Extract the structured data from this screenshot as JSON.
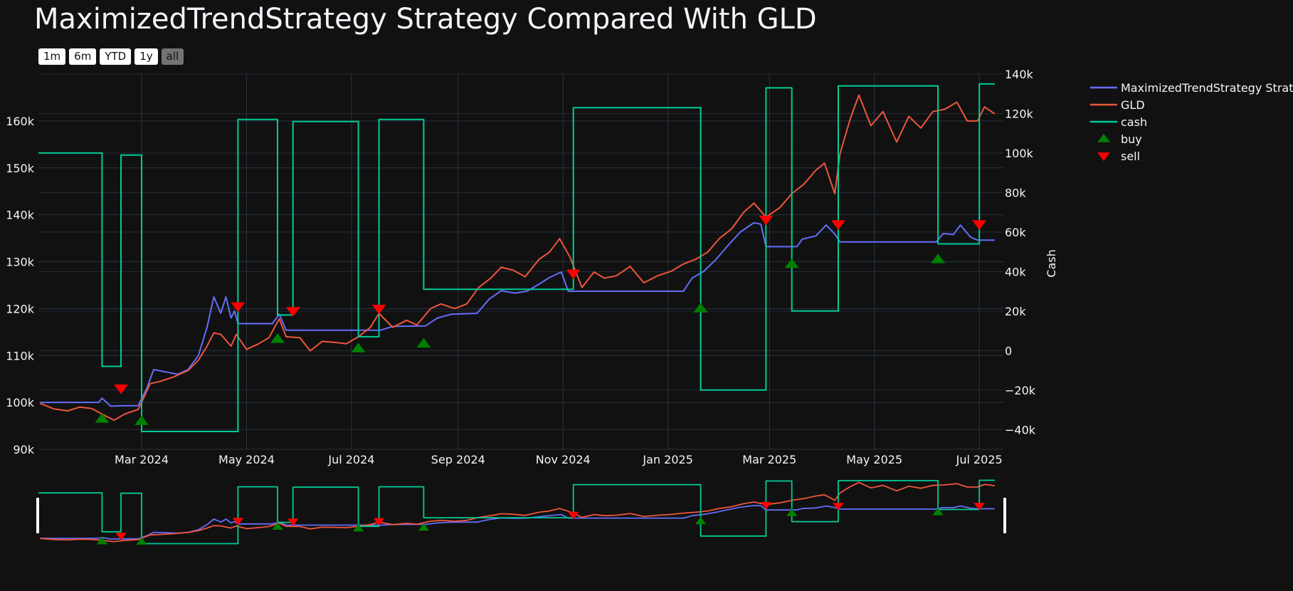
{
  "title": "MaximizedTrendStrategy Strategy Compared With GLD",
  "range_buttons": [
    {
      "label": "1m",
      "active": false
    },
    {
      "label": "6m",
      "active": false
    },
    {
      "label": "YTD",
      "active": false
    },
    {
      "label": "1y",
      "active": false
    },
    {
      "label": "all",
      "active": true
    }
  ],
  "colors": {
    "strategy": "#636efa",
    "gld": "#ef553b",
    "cash": "#00cc96",
    "buy": "#008000",
    "sell": "#ff0000",
    "grid": "#283442"
  },
  "chart_data": {
    "type": "line",
    "title": "MaximizedTrendStrategy Strategy Compared With GLD",
    "x_range": [
      "2024-01-01",
      "2025-07-15"
    ],
    "y_left": {
      "range": [
        90000,
        170000
      ],
      "ticks": [
        {
          "v": 90000,
          "label": "90k"
        },
        {
          "v": 100000,
          "label": "100k"
        },
        {
          "v": 110000,
          "label": "110k"
        },
        {
          "v": 120000,
          "label": "120k"
        },
        {
          "v": 130000,
          "label": "130k"
        },
        {
          "v": 140000,
          "label": "140k"
        },
        {
          "v": 150000,
          "label": "150k"
        },
        {
          "v": 160000,
          "label": "160k"
        }
      ]
    },
    "y_right": {
      "label": "Cash",
      "range": [
        -50000,
        140000
      ],
      "ticks": [
        {
          "v": -40000,
          "label": "−40k"
        },
        {
          "v": -20000,
          "label": "−20k"
        },
        {
          "v": 0,
          "label": "0"
        },
        {
          "v": 20000,
          "label": "20k"
        },
        {
          "v": 40000,
          "label": "40k"
        },
        {
          "v": 60000,
          "label": "60k"
        },
        {
          "v": 80000,
          "label": "80k"
        },
        {
          "v": 100000,
          "label": "100k"
        },
        {
          "v": 120000,
          "label": "120k"
        },
        {
          "v": 140000,
          "label": "140k"
        }
      ]
    },
    "x_ticks": [
      {
        "date": "2024-03-01",
        "label": "Mar 2024"
      },
      {
        "date": "2024-05-01",
        "label": "May 2024"
      },
      {
        "date": "2024-07-01",
        "label": "Jul 2024"
      },
      {
        "date": "2024-09-01",
        "label": "Sep 2024"
      },
      {
        "date": "2024-11-01",
        "label": "Nov 2024"
      },
      {
        "date": "2025-01-01",
        "label": "Jan 2025"
      },
      {
        "date": "2025-03-01",
        "label": "Mar 2025"
      },
      {
        "date": "2025-05-01",
        "label": "May 2025"
      },
      {
        "date": "2025-07-01",
        "label": "Jul 2025"
      }
    ],
    "legend_placement": "right",
    "grid": true,
    "series": [
      {
        "name": "MaximizedTrendStrategy Strategy",
        "key": "strategy",
        "axis": "left",
        "points": [
          [
            "2024-01-02",
            100000
          ],
          [
            "2024-02-05",
            100000
          ],
          [
            "2024-02-07",
            100900
          ],
          [
            "2024-02-12",
            99200
          ],
          [
            "2024-02-20",
            99300
          ],
          [
            "2024-02-28",
            99300
          ],
          [
            "2024-03-04",
            103000
          ],
          [
            "2024-03-08",
            107000
          ],
          [
            "2024-03-15",
            106500
          ],
          [
            "2024-03-22",
            106000
          ],
          [
            "2024-03-28",
            107000
          ],
          [
            "2024-04-03",
            110000
          ],
          [
            "2024-04-08",
            116000
          ],
          [
            "2024-04-12",
            122500
          ],
          [
            "2024-04-16",
            119000
          ],
          [
            "2024-04-19",
            122500
          ],
          [
            "2024-04-22",
            118000
          ],
          [
            "2024-04-24",
            119500
          ],
          [
            "2024-04-26",
            116800
          ],
          [
            "2024-05-16",
            116800
          ],
          [
            "2024-05-20",
            118800
          ],
          [
            "2024-05-24",
            115400
          ],
          [
            "2024-07-08",
            115400
          ],
          [
            "2024-07-18",
            115400
          ],
          [
            "2024-07-25",
            116200
          ],
          [
            "2024-08-13",
            116300
          ],
          [
            "2024-08-20",
            118000
          ],
          [
            "2024-08-28",
            118800
          ],
          [
            "2024-09-12",
            119000
          ],
          [
            "2024-09-19",
            122000
          ],
          [
            "2024-09-26",
            123800
          ],
          [
            "2024-10-04",
            123300
          ],
          [
            "2024-10-11",
            123700
          ],
          [
            "2024-10-18",
            125200
          ],
          [
            "2024-10-24",
            126600
          ],
          [
            "2024-10-31",
            127800
          ],
          [
            "2024-11-04",
            123700
          ],
          [
            "2025-01-10",
            123700
          ],
          [
            "2025-01-15",
            126500
          ],
          [
            "2025-01-22",
            128000
          ],
          [
            "2025-01-29",
            130500
          ],
          [
            "2025-02-05",
            133500
          ],
          [
            "2025-02-12",
            136300
          ],
          [
            "2025-02-20",
            138300
          ],
          [
            "2025-02-24",
            138000
          ],
          [
            "2025-02-27",
            133200
          ],
          [
            "2025-03-17",
            133200
          ],
          [
            "2025-03-20",
            134800
          ],
          [
            "2025-03-28",
            135500
          ],
          [
            "2025-04-03",
            137800
          ],
          [
            "2025-04-08",
            135900
          ],
          [
            "2025-04-11",
            134200
          ],
          [
            "2025-06-06",
            134200
          ],
          [
            "2025-06-10",
            136000
          ],
          [
            "2025-06-16",
            135800
          ],
          [
            "2025-06-20",
            137800
          ],
          [
            "2025-06-26",
            135200
          ],
          [
            "2025-06-30",
            134600
          ],
          [
            "2025-07-10",
            134600
          ]
        ]
      },
      {
        "name": "GLD",
        "key": "gld",
        "axis": "left",
        "points": [
          [
            "2024-01-02",
            99800
          ],
          [
            "2024-01-10",
            98600
          ],
          [
            "2024-01-18",
            98200
          ],
          [
            "2024-01-25",
            99000
          ],
          [
            "2024-02-01",
            98700
          ],
          [
            "2024-02-08",
            97300
          ],
          [
            "2024-02-14",
            96200
          ],
          [
            "2024-02-20",
            97500
          ],
          [
            "2024-02-28",
            98500
          ],
          [
            "2024-03-01",
            100000
          ],
          [
            "2024-03-06",
            104000
          ],
          [
            "2024-03-12",
            104500
          ],
          [
            "2024-03-20",
            105500
          ],
          [
            "2024-03-28",
            106800
          ],
          [
            "2024-04-03",
            109000
          ],
          [
            "2024-04-08",
            112000
          ],
          [
            "2024-04-12",
            114800
          ],
          [
            "2024-04-16",
            114500
          ],
          [
            "2024-04-22",
            112000
          ],
          [
            "2024-04-25",
            114500
          ],
          [
            "2024-05-01",
            111300
          ],
          [
            "2024-05-08",
            112500
          ],
          [
            "2024-05-14",
            113800
          ],
          [
            "2024-05-20",
            117800
          ],
          [
            "2024-05-24",
            114000
          ],
          [
            "2024-06-01",
            113800
          ],
          [
            "2024-06-07",
            111000
          ],
          [
            "2024-06-14",
            113000
          ],
          [
            "2024-06-21",
            112800
          ],
          [
            "2024-06-28",
            112500
          ],
          [
            "2024-07-05",
            114000
          ],
          [
            "2024-07-12",
            116000
          ],
          [
            "2024-07-17",
            119000
          ],
          [
            "2024-07-25",
            116000
          ],
          [
            "2024-08-02",
            117500
          ],
          [
            "2024-08-08",
            116500
          ],
          [
            "2024-08-16",
            120000
          ],
          [
            "2024-08-22",
            121000
          ],
          [
            "2024-08-30",
            120000
          ],
          [
            "2024-09-06",
            121000
          ],
          [
            "2024-09-13",
            124500
          ],
          [
            "2024-09-20",
            126500
          ],
          [
            "2024-09-26",
            128800
          ],
          [
            "2024-10-03",
            128200
          ],
          [
            "2024-10-10",
            126800
          ],
          [
            "2024-10-18",
            130500
          ],
          [
            "2024-10-24",
            132000
          ],
          [
            "2024-10-30",
            134900
          ],
          [
            "2024-11-05",
            131000
          ],
          [
            "2024-11-12",
            124500
          ],
          [
            "2024-11-19",
            127800
          ],
          [
            "2024-11-25",
            126500
          ],
          [
            "2024-12-02",
            127000
          ],
          [
            "2024-12-10",
            129000
          ],
          [
            "2024-12-18",
            125500
          ],
          [
            "2024-12-26",
            127000
          ],
          [
            "2025-01-03",
            128000
          ],
          [
            "2025-01-10",
            129500
          ],
          [
            "2025-01-17",
            130500
          ],
          [
            "2025-01-24",
            132000
          ],
          [
            "2025-01-31",
            135000
          ],
          [
            "2025-02-07",
            137000
          ],
          [
            "2025-02-14",
            140500
          ],
          [
            "2025-02-20",
            142500
          ],
          [
            "2025-02-27",
            139500
          ],
          [
            "2025-03-07",
            141500
          ],
          [
            "2025-03-14",
            144500
          ],
          [
            "2025-03-21",
            146500
          ],
          [
            "2025-03-28",
            149500
          ],
          [
            "2025-04-02",
            151000
          ],
          [
            "2025-04-08",
            144500
          ],
          [
            "2025-04-11",
            153000
          ],
          [
            "2025-04-17",
            160500
          ],
          [
            "2025-04-22",
            165500
          ],
          [
            "2025-04-29",
            159000
          ],
          [
            "2025-05-06",
            162000
          ],
          [
            "2025-05-14",
            155500
          ],
          [
            "2025-05-21",
            161000
          ],
          [
            "2025-05-28",
            158500
          ],
          [
            "2025-06-04",
            162000
          ],
          [
            "2025-06-11",
            162500
          ],
          [
            "2025-06-18",
            164000
          ],
          [
            "2025-06-24",
            160000
          ],
          [
            "2025-06-30",
            160000
          ],
          [
            "2025-07-04",
            163000
          ],
          [
            "2025-07-10",
            161500
          ]
        ]
      },
      {
        "name": "cash",
        "key": "cash",
        "axis": "right",
        "points": [
          [
            "2024-01-01",
            100000
          ],
          [
            "2024-02-07",
            100000
          ],
          [
            "2024-02-07",
            -8000
          ],
          [
            "2024-02-18",
            -8000
          ],
          [
            "2024-02-18",
            99000
          ],
          [
            "2024-03-01",
            99000
          ],
          [
            "2024-03-01",
            -41000
          ],
          [
            "2024-04-26",
            -41000
          ],
          [
            "2024-04-26",
            117000
          ],
          [
            "2024-05-19",
            117000
          ],
          [
            "2024-05-19",
            18000
          ],
          [
            "2024-05-28",
            18000
          ],
          [
            "2024-05-28",
            116000
          ],
          [
            "2024-07-05",
            116000
          ],
          [
            "2024-07-05",
            7000
          ],
          [
            "2024-07-17",
            7000
          ],
          [
            "2024-07-17",
            117000
          ],
          [
            "2024-08-12",
            117000
          ],
          [
            "2024-08-12",
            31000
          ],
          [
            "2024-11-07",
            31000
          ],
          [
            "2024-11-07",
            123000
          ],
          [
            "2025-01-20",
            123000
          ],
          [
            "2025-01-20",
            -20000
          ],
          [
            "2025-02-27",
            -20000
          ],
          [
            "2025-02-27",
            133000
          ],
          [
            "2025-03-14",
            133000
          ],
          [
            "2025-03-14",
            20000
          ],
          [
            "2025-04-10",
            20000
          ],
          [
            "2025-04-10",
            134000
          ],
          [
            "2025-06-07",
            134000
          ],
          [
            "2025-06-07",
            54000
          ],
          [
            "2025-07-01",
            54000
          ],
          [
            "2025-07-01",
            135000
          ],
          [
            "2025-07-10",
            135000
          ]
        ]
      }
    ],
    "buy_markers": [
      {
        "date": "2024-02-07",
        "value": 96500
      },
      {
        "date": "2024-03-01",
        "value": 96000
      },
      {
        "date": "2024-05-19",
        "value": 113500
      },
      {
        "date": "2024-07-05",
        "value": 111500
      },
      {
        "date": "2024-08-12",
        "value": 112500
      },
      {
        "date": "2025-01-20",
        "value": 120000
      },
      {
        "date": "2025-03-14",
        "value": 129500
      },
      {
        "date": "2025-06-07",
        "value": 130500
      }
    ],
    "sell_markers": [
      {
        "date": "2024-02-18",
        "value": 103000
      },
      {
        "date": "2024-04-26",
        "value": 120500
      },
      {
        "date": "2024-05-28",
        "value": 119500
      },
      {
        "date": "2024-07-17",
        "value": 120000
      },
      {
        "date": "2024-11-07",
        "value": 127500
      },
      {
        "date": "2025-02-27",
        "value": 139000
      },
      {
        "date": "2025-04-10",
        "value": 138000
      },
      {
        "date": "2025-07-01",
        "value": 138000
      }
    ],
    "legend": [
      {
        "label": "MaximizedTrendStrategy Strateg",
        "key": "strategy",
        "type": "line"
      },
      {
        "label": "GLD",
        "key": "gld",
        "type": "line"
      },
      {
        "label": "cash",
        "key": "cash",
        "type": "line"
      },
      {
        "label": "buy",
        "key": "buy",
        "type": "up"
      },
      {
        "label": "sell",
        "key": "sell",
        "type": "down"
      }
    ]
  }
}
